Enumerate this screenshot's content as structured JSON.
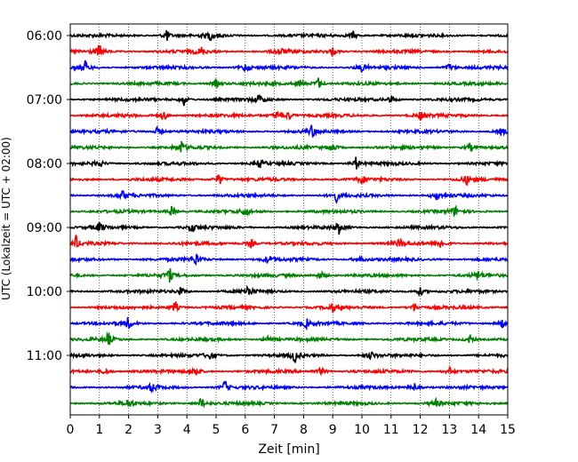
{
  "chart_data": {
    "type": "line",
    "title": "",
    "xlabel": "Zeit  [min]",
    "ylabel": "UTC (Lokalzeit = UTC + 02:00)",
    "xlim": [
      0,
      15
    ],
    "x_ticks": [
      "0",
      "1",
      "2",
      "3",
      "4",
      "5",
      "6",
      "7",
      "8",
      "9",
      "10",
      "11",
      "12",
      "13",
      "14",
      "15"
    ],
    "y_ticks": [
      {
        "label": "06:00",
        "row": 0
      },
      {
        "label": "07:00",
        "row": 4
      },
      {
        "label": "08:00",
        "row": 8
      },
      {
        "label": "09:00",
        "row": 12
      },
      {
        "label": "10:00",
        "row": 16
      },
      {
        "label": "11:00",
        "row": 20
      }
    ],
    "grid": "vertical dotted at each minute",
    "row_colors": [
      "#000000",
      "#ff0000",
      "#0000ff",
      "#008000"
    ],
    "rows": [
      {
        "start": "06:00",
        "events": [
          3.3,
          4.8,
          9.7
        ]
      },
      {
        "start": "06:15",
        "events": [
          1.0,
          4.5,
          7.2,
          9.0
        ]
      },
      {
        "start": "06:30",
        "events": [
          0.5,
          10.0,
          6.0,
          13.0
        ]
      },
      {
        "start": "06:45",
        "events": [
          8.5,
          7.9,
          5.0
        ]
      },
      {
        "start": "07:00",
        "events": [
          3.9,
          6.5,
          11.0
        ]
      },
      {
        "start": "07:15",
        "events": [
          3.2,
          7.1,
          7.5,
          12.0
        ]
      },
      {
        "start": "07:30",
        "events": [
          8.3,
          3.0,
          14.8
        ]
      },
      {
        "start": "07:45",
        "events": [
          3.8,
          13.7,
          9.0
        ]
      },
      {
        "start": "08:00",
        "events": [
          9.8,
          6.5,
          1.0
        ]
      },
      {
        "start": "08:15",
        "events": [
          5.1,
          13.6,
          10.0
        ]
      },
      {
        "start": "08:30",
        "events": [
          9.1,
          1.8,
          12.6
        ]
      },
      {
        "start": "08:45",
        "events": [
          3.5,
          13.2,
          6.0
        ]
      },
      {
        "start": "09:00",
        "events": [
          9.2,
          4.2,
          1.0
        ]
      },
      {
        "start": "09:15",
        "events": [
          0.2,
          6.2,
          12.7,
          11.3
        ]
      },
      {
        "start": "09:30",
        "events": [
          4.3,
          9.9,
          6.8
        ]
      },
      {
        "start": "09:45",
        "events": [
          3.4,
          8.6,
          14.0
        ]
      },
      {
        "start": "10:00",
        "events": [
          6.1,
          3.8,
          12.0
        ]
      },
      {
        "start": "10:15",
        "events": [
          3.6,
          9.0,
          11.8
        ]
      },
      {
        "start": "10:30",
        "events": [
          2.0,
          8.1,
          14.8
        ]
      },
      {
        "start": "10:45",
        "events": [
          1.3,
          6.8,
          13.7
        ]
      },
      {
        "start": "11:00",
        "events": [
          7.7,
          4.8,
          10.3
        ]
      },
      {
        "start": "11:15",
        "events": [
          4.3,
          8.6,
          13.0,
          1.2
        ]
      },
      {
        "start": "11:30",
        "events": [
          5.3,
          11.8,
          2.8
        ]
      },
      {
        "start": "11:45",
        "events": [
          4.5,
          12.5,
          2.0
        ]
      }
    ]
  }
}
